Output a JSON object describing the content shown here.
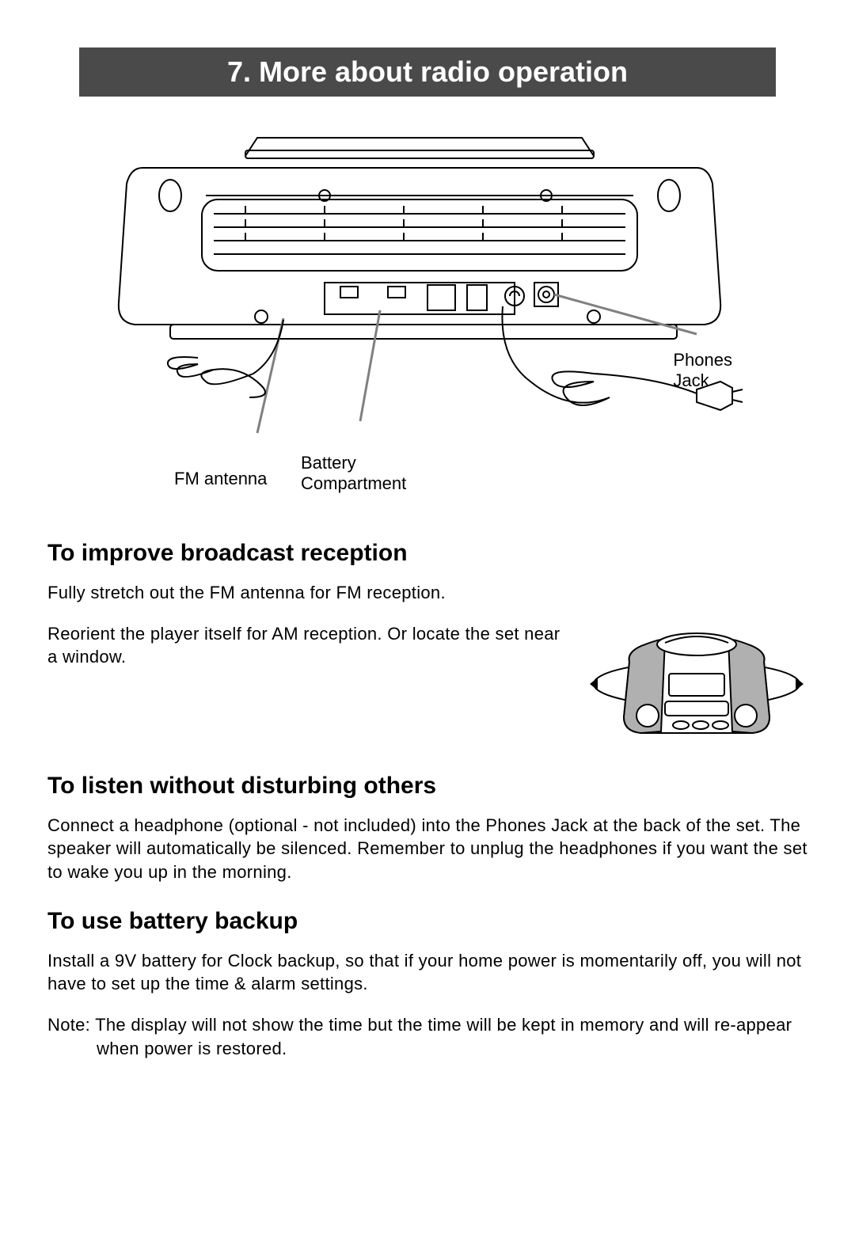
{
  "header": {
    "title": "7. More about radio operation"
  },
  "diagram": {
    "labels": {
      "fm_antenna": "FM antenna",
      "battery_compartment": "Battery\nCompartment",
      "phones_jack": "Phones\nJack"
    },
    "colors": {
      "stroke": "#000000",
      "grey_line": "#808080",
      "mini_grey_fill": "#b0b0b0",
      "header_bg": "#4a4a4a"
    },
    "stroke_width": 2
  },
  "sections": {
    "reception": {
      "heading": "To improve broadcast reception",
      "p1": "Fully stretch out the FM antenna for FM reception.",
      "p2": "Reorient the player itself for AM reception. Or locate the set near a window."
    },
    "listen": {
      "heading": "To listen without disturbing others",
      "p1": "Connect a headphone (optional - not included) into the Phones Jack at the back of the set. The speaker will automatically be silenced. Remember to unplug the headphones if you want the set to wake you up in the morning."
    },
    "battery": {
      "heading": "To use battery backup",
      "p1": "Install a 9V battery for Clock backup, so that if your home power is momentarily off, you will not have to set up the time & alarm settings.",
      "note": "Note: The display will not show the time but the time will be kept in memory and will re-appear when power is restored."
    }
  }
}
